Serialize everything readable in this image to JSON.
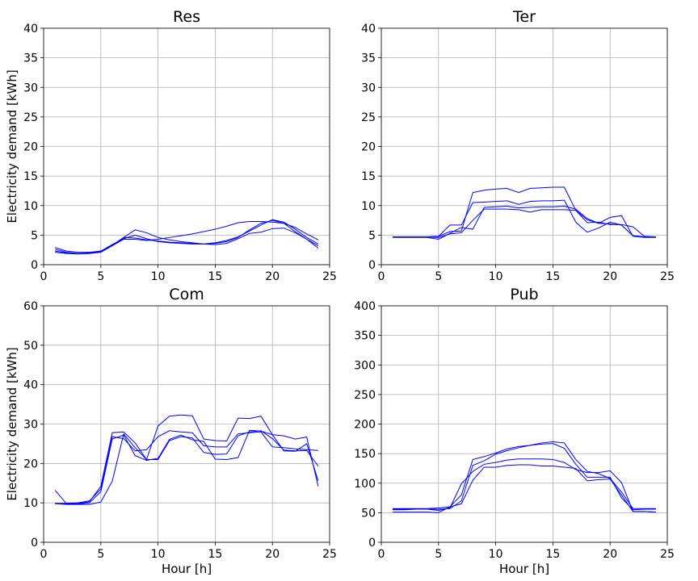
{
  "chart_data": [
    {
      "type": "line",
      "title": "Res",
      "xlabel": "",
      "ylabel": "Electricity demand [kWh]",
      "xlim": [
        0,
        25
      ],
      "ylim": [
        0,
        40
      ],
      "xticks": [
        0,
        5,
        10,
        15,
        20,
        25
      ],
      "yticks": [
        0,
        5,
        10,
        15,
        20,
        25,
        30,
        35,
        40
      ],
      "grid": true,
      "color": "#0000ff",
      "x": [
        1,
        2,
        3,
        4,
        5,
        6,
        7,
        8,
        9,
        10,
        11,
        12,
        13,
        14,
        15,
        16,
        17,
        18,
        19,
        20,
        21,
        22,
        23,
        24
      ],
      "series": [
        {
          "values": [
            2.9,
            2.3,
            2.1,
            2.1,
            2.3,
            3.2,
            4.3,
            4.3,
            4.1,
            4.3,
            4.6,
            4.9,
            5.2,
            5.6,
            6.0,
            6.5,
            7.1,
            7.3,
            7.3,
            7.2,
            7.0,
            6.3,
            5.2,
            4.2
          ]
        },
        {
          "values": [
            2.6,
            2.1,
            1.9,
            1.9,
            2.2,
            3.3,
            4.6,
            5.9,
            5.4,
            4.6,
            4.2,
            3.9,
            3.7,
            3.5,
            3.4,
            3.6,
            4.4,
            5.3,
            5.5,
            6.1,
            6.2,
            5.4,
            4.3,
            3.2
          ]
        },
        {
          "values": [
            2.3,
            2.0,
            1.9,
            2.0,
            2.3,
            3.4,
            4.4,
            5.0,
            4.4,
            3.9,
            3.7,
            3.6,
            3.5,
            3.5,
            3.7,
            4.1,
            4.7,
            5.7,
            6.7,
            7.6,
            7.2,
            6.0,
            4.6,
            3.5
          ]
        },
        {
          "values": [
            2.1,
            1.9,
            1.8,
            1.9,
            2.1,
            3.2,
            4.6,
            4.5,
            4.2,
            4.0,
            3.8,
            3.7,
            3.6,
            3.5,
            3.6,
            3.9,
            4.6,
            5.9,
            7.0,
            7.5,
            7.0,
            5.6,
            4.3,
            2.8
          ]
        }
      ]
    },
    {
      "type": "line",
      "title": "Ter",
      "xlabel": "",
      "ylabel": "",
      "xlim": [
        0,
        25
      ],
      "ylim": [
        0,
        40
      ],
      "xticks": [
        0,
        5,
        10,
        15,
        20,
        25
      ],
      "yticks": [
        0,
        5,
        10,
        15,
        20,
        25,
        30,
        35,
        40
      ],
      "grid": true,
      "color": "#0000ff",
      "x": [
        1,
        2,
        3,
        4,
        5,
        6,
        7,
        8,
        9,
        10,
        11,
        12,
        13,
        14,
        15,
        16,
        17,
        18,
        19,
        20,
        21,
        22,
        23,
        24
      ],
      "series": [
        {
          "values": [
            4.7,
            4.7,
            4.7,
            4.7,
            4.8,
            5.6,
            5.7,
            12.2,
            12.6,
            12.8,
            12.9,
            12.2,
            12.9,
            13.0,
            13.1,
            13.1,
            9.2,
            7.6,
            7.0,
            6.9,
            6.7,
            4.9,
            4.7,
            4.7
          ]
        },
        {
          "values": [
            4.7,
            4.7,
            4.7,
            4.7,
            4.8,
            6.7,
            6.7,
            10.5,
            10.6,
            10.7,
            10.8,
            10.2,
            10.7,
            10.8,
            10.8,
            10.9,
            7.2,
            5.5,
            6.2,
            7.2,
            6.7,
            4.9,
            4.7,
            4.7
          ]
        },
        {
          "values": [
            4.6,
            4.6,
            4.6,
            4.6,
            4.3,
            5.3,
            6.3,
            6.0,
            9.7,
            9.8,
            9.9,
            9.6,
            9.7,
            9.8,
            9.8,
            9.9,
            9.4,
            7.8,
            7.0,
            8.0,
            8.3,
            4.8,
            4.6,
            4.6
          ]
        },
        {
          "values": [
            4.7,
            4.7,
            4.7,
            4.7,
            4.6,
            5.2,
            5.4,
            7.5,
            9.4,
            9.4,
            9.4,
            9.3,
            8.9,
            9.3,
            9.3,
            9.3,
            9.2,
            7.1,
            7.2,
            6.8,
            6.8,
            6.4,
            4.8,
            4.7
          ]
        }
      ]
    },
    {
      "type": "line",
      "title": "Com",
      "xlabel": "Hour [h]",
      "ylabel": "Electricity demand [kWh]",
      "xlim": [
        0,
        25
      ],
      "ylim": [
        0,
        60
      ],
      "xticks": [
        0,
        5,
        10,
        15,
        20,
        25
      ],
      "yticks": [
        0,
        10,
        20,
        30,
        40,
        50,
        60
      ],
      "grid": true,
      "color": "#0000ff",
      "x": [
        1,
        2,
        3,
        4,
        5,
        6,
        7,
        8,
        9,
        10,
        11,
        12,
        13,
        14,
        15,
        16,
        17,
        18,
        19,
        20,
        21,
        22,
        23,
        24
      ],
      "series": [
        {
          "values": [
            13.2,
            9.8,
            9.8,
            10.3,
            14.2,
            27.8,
            28.0,
            25.2,
            21.0,
            29.5,
            32.0,
            32.3,
            32.1,
            26.2,
            25.8,
            25.7,
            31.5,
            31.4,
            32.0,
            27.3,
            27.0,
            26.2,
            26.7,
            14.2
          ]
        },
        {
          "values": [
            9.8,
            9.9,
            10.0,
            10.5,
            13.5,
            26.8,
            26.3,
            23.2,
            23.5,
            26.8,
            28.3,
            28.0,
            27.8,
            24.5,
            24.2,
            24.2,
            27.5,
            27.8,
            28.0,
            24.2,
            24.0,
            23.7,
            23.5,
            23.3
          ]
        },
        {
          "values": [
            9.9,
            9.7,
            9.7,
            10.0,
            12.8,
            26.2,
            27.2,
            22.0,
            20.8,
            21.3,
            26.1,
            27.2,
            26.0,
            25.6,
            21.1,
            21.0,
            21.5,
            28.4,
            28.2,
            27.3,
            23.2,
            23.1,
            25.0,
            15.6
          ]
        },
        {
          "values": [
            9.8,
            9.6,
            9.6,
            9.6,
            10.2,
            15.5,
            27.5,
            24.0,
            21.0,
            21.0,
            25.8,
            26.8,
            26.5,
            22.8,
            22.3,
            22.4,
            27.0,
            28.0,
            28.3,
            26.3,
            23.4,
            23.2,
            23.3,
            19.3
          ]
        }
      ]
    },
    {
      "type": "line",
      "title": "Pub",
      "xlabel": "Hour [h]",
      "ylabel": "",
      "xlim": [
        0,
        25
      ],
      "ylim": [
        0,
        400
      ],
      "xticks": [
        0,
        5,
        10,
        15,
        20,
        25
      ],
      "yticks": [
        0,
        50,
        100,
        150,
        200,
        250,
        300,
        350,
        400
      ],
      "grid": true,
      "color": "#0000ff",
      "x": [
        1,
        2,
        3,
        4,
        5,
        6,
        7,
        8,
        9,
        10,
        11,
        12,
        13,
        14,
        15,
        16,
        17,
        18,
        19,
        20,
        21,
        22,
        23,
        24
      ],
      "series": [
        {
          "values": [
            57,
            57,
            57,
            57,
            58,
            60,
            80,
            140,
            145,
            151,
            158,
            162,
            164,
            168,
            170,
            168,
            140,
            120,
            116,
            108,
            85,
            57,
            57,
            57
          ]
        },
        {
          "values": [
            55,
            55,
            56,
            56,
            56,
            57,
            70,
            130,
            138,
            149,
            155,
            160,
            164,
            166,
            167,
            159,
            132,
            110,
            110,
            110,
            75,
            55,
            56,
            56
          ]
        },
        {
          "values": [
            56,
            56,
            56,
            56,
            54,
            58,
            99,
            120,
            132,
            135,
            139,
            141,
            141,
            141,
            140,
            135,
            123,
            118,
            118,
            121,
            101,
            52,
            52,
            51
          ]
        },
        {
          "values": [
            51,
            51,
            51,
            51,
            50,
            60,
            65,
            105,
            127,
            127,
            130,
            131,
            131,
            129,
            129,
            127,
            125,
            104,
            106,
            107,
            80,
            52,
            52,
            51
          ]
        }
      ]
    }
  ]
}
